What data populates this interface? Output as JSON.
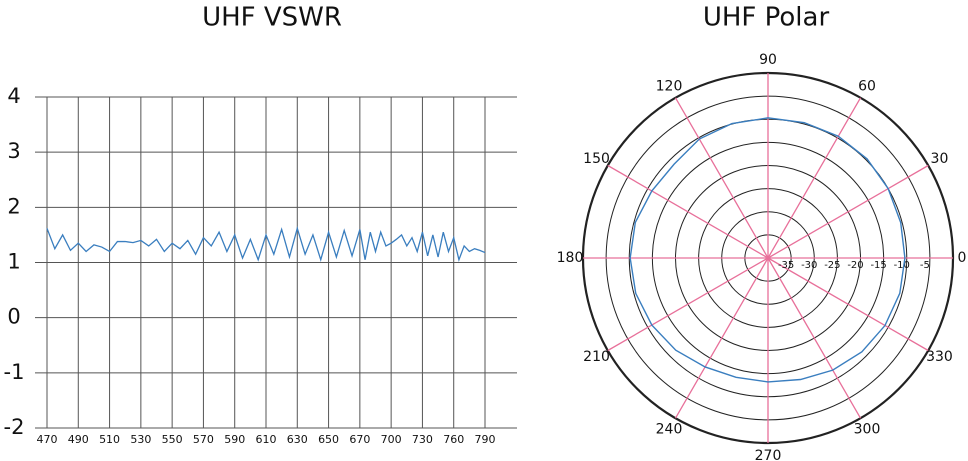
{
  "chart_data": [
    {
      "type": "line",
      "title": "UHF VSWR",
      "x": [
        470,
        475,
        480,
        485,
        490,
        495,
        500,
        505,
        510,
        515,
        520,
        525,
        530,
        535,
        540,
        545,
        550,
        555,
        560,
        565,
        570,
        575,
        580,
        585,
        590,
        595,
        600,
        605,
        610,
        615,
        620,
        625,
        630,
        635,
        640,
        645,
        650,
        655,
        660,
        665,
        670,
        675,
        680,
        685,
        690,
        695,
        700,
        705,
        710,
        715,
        720,
        725,
        730,
        735,
        740,
        745,
        750,
        755,
        760,
        765,
        770,
        775,
        780,
        785,
        790
      ],
      "series": [
        {
          "color": "#3a7ebf",
          "values": [
            1.62,
            1.25,
            1.5,
            1.22,
            1.35,
            1.2,
            1.32,
            1.28,
            1.2,
            1.38,
            1.38,
            1.36,
            1.4,
            1.3,
            1.42,
            1.2,
            1.35,
            1.25,
            1.4,
            1.15,
            1.45,
            1.3,
            1.55,
            1.2,
            1.5,
            1.08,
            1.42,
            1.05,
            1.5,
            1.15,
            1.6,
            1.1,
            1.62,
            1.15,
            1.5,
            1.05,
            1.55,
            1.1,
            1.58,
            1.12,
            1.6,
            1.05,
            1.55,
            1.2,
            1.55,
            1.3,
            1.35,
            1.42,
            1.5,
            1.3,
            1.45,
            1.2,
            1.55,
            1.12,
            1.5,
            1.1,
            1.55,
            1.2,
            1.45,
            1.05,
            1.3,
            1.2,
            1.25,
            1.22,
            1.18
          ]
        }
      ],
      "xlim": [
        470,
        790
      ],
      "xticks": [
        470,
        490,
        510,
        530,
        550,
        570,
        590,
        610,
        630,
        650,
        670,
        700,
        730,
        760,
        790
      ],
      "ylim": [
        -2,
        4
      ],
      "yticks": [
        -2,
        -1,
        0,
        1,
        2,
        3,
        4
      ],
      "grid": true
    },
    {
      "type": "polar",
      "title": "UHF Polar",
      "theta": [
        0,
        15,
        30,
        45,
        60,
        75,
        90,
        105,
        120,
        135,
        150,
        165,
        180,
        195,
        210,
        225,
        240,
        255,
        270,
        285,
        300,
        315,
        330,
        345
      ],
      "series": [
        {
          "color": "#3a7ebf",
          "values": [
            -10.4,
            -10.3,
            -10,
            -9.7,
            -9.6,
            -9.7,
            -9.7,
            -9.9,
            -10.3,
            -11.3,
            -11,
            -10.3,
            -10.2,
            -10.4,
            -11,
            -11.8,
            -12.8,
            -13.3,
            -13.2,
            -12.8,
            -12,
            -11.3,
            -10.8,
            -10.5
          ]
        }
      ],
      "rlim": [
        -40,
        0
      ],
      "rticks": [
        -35,
        -30,
        -25,
        -20,
        -15,
        -10,
        -5
      ],
      "thetaticks": [
        0,
        30,
        60,
        90,
        120,
        150,
        180,
        210,
        240,
        270,
        300,
        330
      ],
      "grid_color": "#e8709a"
    }
  ]
}
